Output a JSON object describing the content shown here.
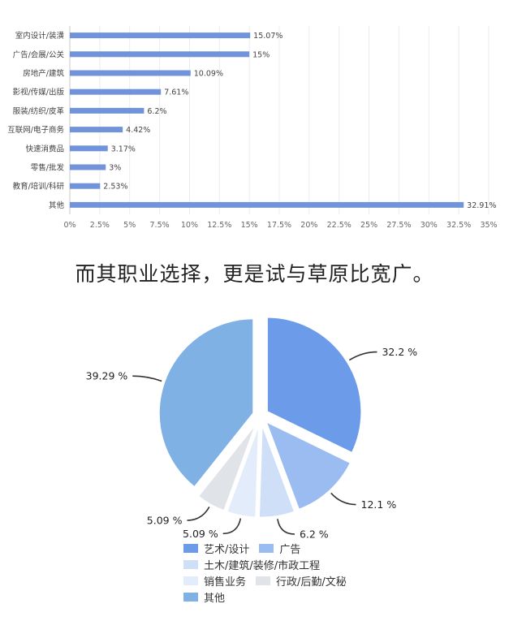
{
  "chart_data": [
    {
      "type": "bar",
      "orientation": "horizontal",
      "categories": [
        "室内设计/装潢",
        "广告/会展/公关",
        "房地产/建筑",
        "影视/传媒/出版",
        "服装/纺织/皮革",
        "互联网/电子商务",
        "快速消费品",
        "零售/批发",
        "教育/培训/科研",
        "其他"
      ],
      "values": [
        15.07,
        15,
        10.09,
        7.61,
        6.2,
        4.42,
        3.17,
        3,
        2.53,
        32.91
      ],
      "value_labels": [
        "15.07%",
        "15%",
        "10.09%",
        "7.61%",
        "6.2%",
        "4.42%",
        "3.17%",
        "3%",
        "2.53%",
        "32.91%"
      ],
      "xlim": [
        0,
        35
      ],
      "xticks": [
        "0%",
        "2.5%",
        "5%",
        "7.5%",
        "10%",
        "12.5%",
        "15%",
        "17.5%",
        "20%",
        "22.5%",
        "25%",
        "27.5%",
        "30%",
        "32.5%",
        "35%"
      ],
      "grid": true,
      "color": "#7093d9"
    },
    {
      "type": "pie",
      "labels": [
        "艺术/设计",
        "广告",
        "土木/建筑/装修/市政工程",
        "销售业务",
        "行政/后勤/文秘",
        "其他"
      ],
      "values": [
        32.2,
        12.1,
        6.2,
        5.09,
        5.09,
        39.29
      ],
      "value_labels": [
        "32.2 %",
        "12.1 %",
        "6.2 %",
        "5.09 %",
        "5.09 %",
        "39.29 %"
      ],
      "colors": [
        "#6b9be9",
        "#9bbcf0",
        "#cfdff8",
        "#e3ecfa",
        "#e0e3e8",
        "#7fb1e4"
      ],
      "legend": "bottom"
    }
  ],
  "caption": "而其职业选择，更是试与草原比宽广。"
}
